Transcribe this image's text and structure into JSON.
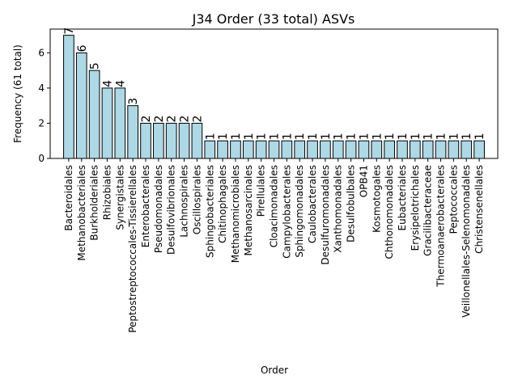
{
  "chart_data": {
    "type": "bar",
    "title": "J34 Order (33 total) ASVs",
    "xlabel": "Order",
    "ylabel": "Frequency (61 total)",
    "ylim": [
      0,
      7.35
    ],
    "yticks": [
      0,
      2,
      4,
      6
    ],
    "grid": false,
    "legend": "none",
    "bar_color": "#add8e6",
    "edge_color": "#000000",
    "categories": [
      "Bacteroidales",
      "Methanobacteriales",
      "Burkholderiales",
      "Rhizobiales",
      "Synergistales",
      "Peptostreptococcales-Tissierellales",
      "Enterobacterales",
      "Pseudomonadales",
      "Desulfovibrionales",
      "Lachnospirales",
      "Oscillospirales",
      "Sphingobacteriales",
      "Chitinophagales",
      "Methanomicrobiales",
      "Methanosarcinales",
      "Pirellulales",
      "Cloacimonadales",
      "Campylobacterales",
      "Sphingomonadales",
      "Caulobacterales",
      "Desulfuromonadales",
      "Xanthomonadales",
      "Desulfobulbales",
      "OPB41",
      "Kosmotogales",
      "Chthonomonadales",
      "Eubacteriales",
      "Erysipelotrichales",
      "Gracilibacteraceae",
      "Thermoanaerobacterales",
      "Peptococcales",
      "Veillonellales-Selenomonadales",
      "Christensenellales"
    ],
    "values": [
      7,
      6,
      5,
      4,
      4,
      3,
      2,
      2,
      2,
      2,
      2,
      1,
      1,
      1,
      1,
      1,
      1,
      1,
      1,
      1,
      1,
      1,
      1,
      1,
      1,
      1,
      1,
      1,
      1,
      1,
      1,
      1,
      1
    ]
  }
}
